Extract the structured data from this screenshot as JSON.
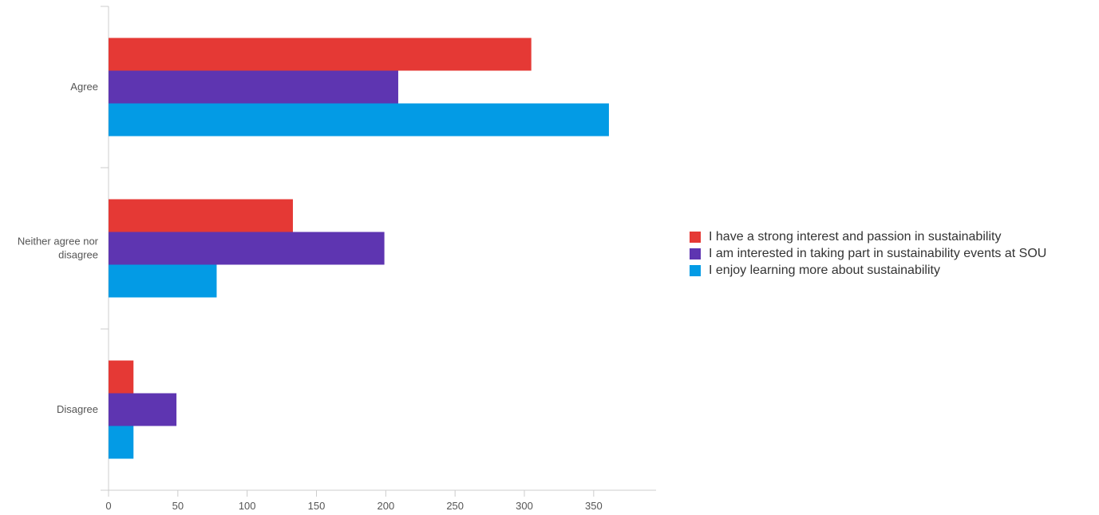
{
  "chart_data": {
    "type": "bar",
    "orientation": "horizontal",
    "title": "",
    "xlabel": "",
    "ylabel": "",
    "categories": [
      "Agree",
      "Neither agree nor disagree",
      "Disagree"
    ],
    "category_lines": [
      [
        "Agree"
      ],
      [
        "Neither agree nor",
        "disagree"
      ],
      [
        "Disagree"
      ]
    ],
    "series": [
      {
        "name": "I have a strong interest and passion in sustainability",
        "color": "#e53935",
        "values": [
          305,
          133,
          18
        ]
      },
      {
        "name": "I am interested in taking part in sustainability events at SOU",
        "color": "#5e35b1",
        "values": [
          209,
          199,
          49
        ]
      },
      {
        "name": "I enjoy learning more about sustainability",
        "color": "#039be5",
        "values": [
          361,
          78,
          18
        ]
      }
    ],
    "xlim": [
      0,
      395
    ],
    "xticks": [
      0,
      50,
      100,
      150,
      200,
      250,
      300,
      350
    ],
    "grid": false,
    "legend_position": "right"
  }
}
